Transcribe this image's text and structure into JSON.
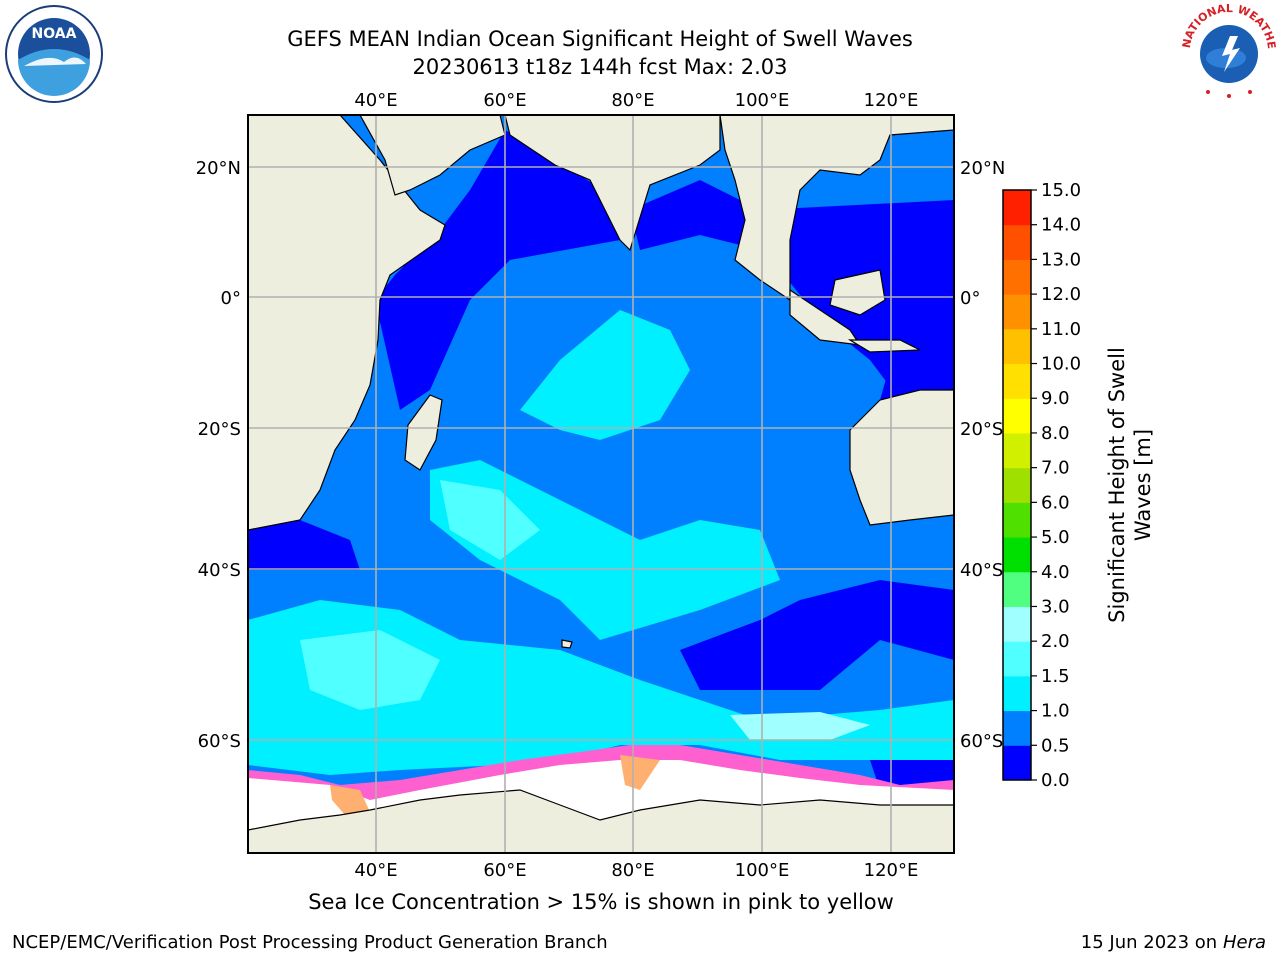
{
  "header": {
    "title_line1": "GEFS MEAN Indian Ocean Significant Height of Swell Waves",
    "title_line2": "20230613 t18z 144h fcst   Max: 2.03"
  },
  "logos": {
    "left": {
      "icon": "noaa-logo-icon",
      "text": "NOAA"
    },
    "right": {
      "icon": "nws-logo-icon",
      "text": "NATIONAL WEATHER SERVICE"
    }
  },
  "map": {
    "lon_labels": [
      "40°E",
      "60°E",
      "80°E",
      "100°E",
      "120°E"
    ],
    "lat_labels_left": [
      "20°N",
      "0°",
      "20°S",
      "40°S",
      "60°S"
    ],
    "lat_labels_right": [
      "20°N",
      "0°",
      "20°S",
      "40°S",
      "60°S"
    ],
    "land_color": "#eeeedf",
    "ice_note": "Sea Ice Concentration > 15% is shown in pink to yellow"
  },
  "colorbar": {
    "label": "Significant Height of Swell Waves [m]",
    "ticks": [
      "0.0",
      "0.5",
      "1.0",
      "1.5",
      "2.0",
      "3.0",
      "4.0",
      "5.0",
      "6.0",
      "7.0",
      "8.0",
      "9.0",
      "10.0",
      "11.0",
      "12.0",
      "13.0",
      "14.0",
      "15.0"
    ],
    "colors": [
      "#0000ff",
      "#0080ff",
      "#00f0ff",
      "#50ffff",
      "#a0ffff",
      "#50ff80",
      "#00e000",
      "#50e000",
      "#a0e000",
      "#d0f000",
      "#ffff00",
      "#ffe000",
      "#ffc000",
      "#ff9000",
      "#ff7000",
      "#ff5000",
      "#ff2000"
    ]
  },
  "footer": {
    "left": "NCEP/EMC/Verification Post Processing Product Generation Branch",
    "date": "15 Jun 2023",
    "on": "on",
    "machine": "Hera"
  }
}
